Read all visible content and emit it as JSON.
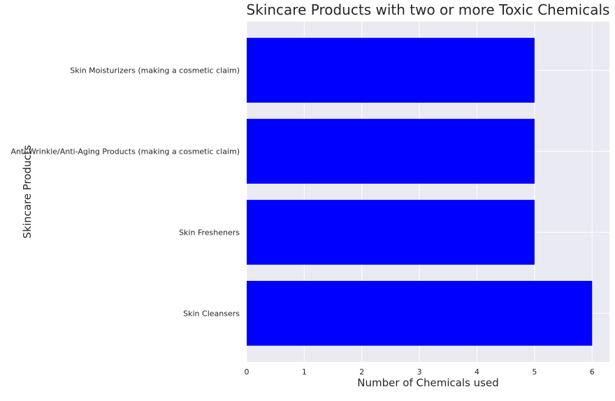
{
  "chart_data": {
    "type": "bar",
    "orientation": "horizontal",
    "title": "Skincare Products with two or more Toxic Chemicals",
    "xlabel": "Number of Chemicals used",
    "ylabel": "Skincare Products",
    "categories": [
      "Skin Cleansers",
      "Skin Fresheners",
      "Anti-Wrinkle/Anti-Aging Products (making a cosmetic claim)",
      "Skin Moisturizers (making a cosmetic claim)"
    ],
    "values": [
      6,
      5,
      5,
      5
    ],
    "xlim": [
      0,
      6.3
    ],
    "xticks": [
      0,
      1,
      2,
      3,
      4,
      5,
      6
    ],
    "grid": true,
    "bar_color": "#0000ff",
    "background_color": "#eaeaf2",
    "grid_color": "#ffffff"
  }
}
